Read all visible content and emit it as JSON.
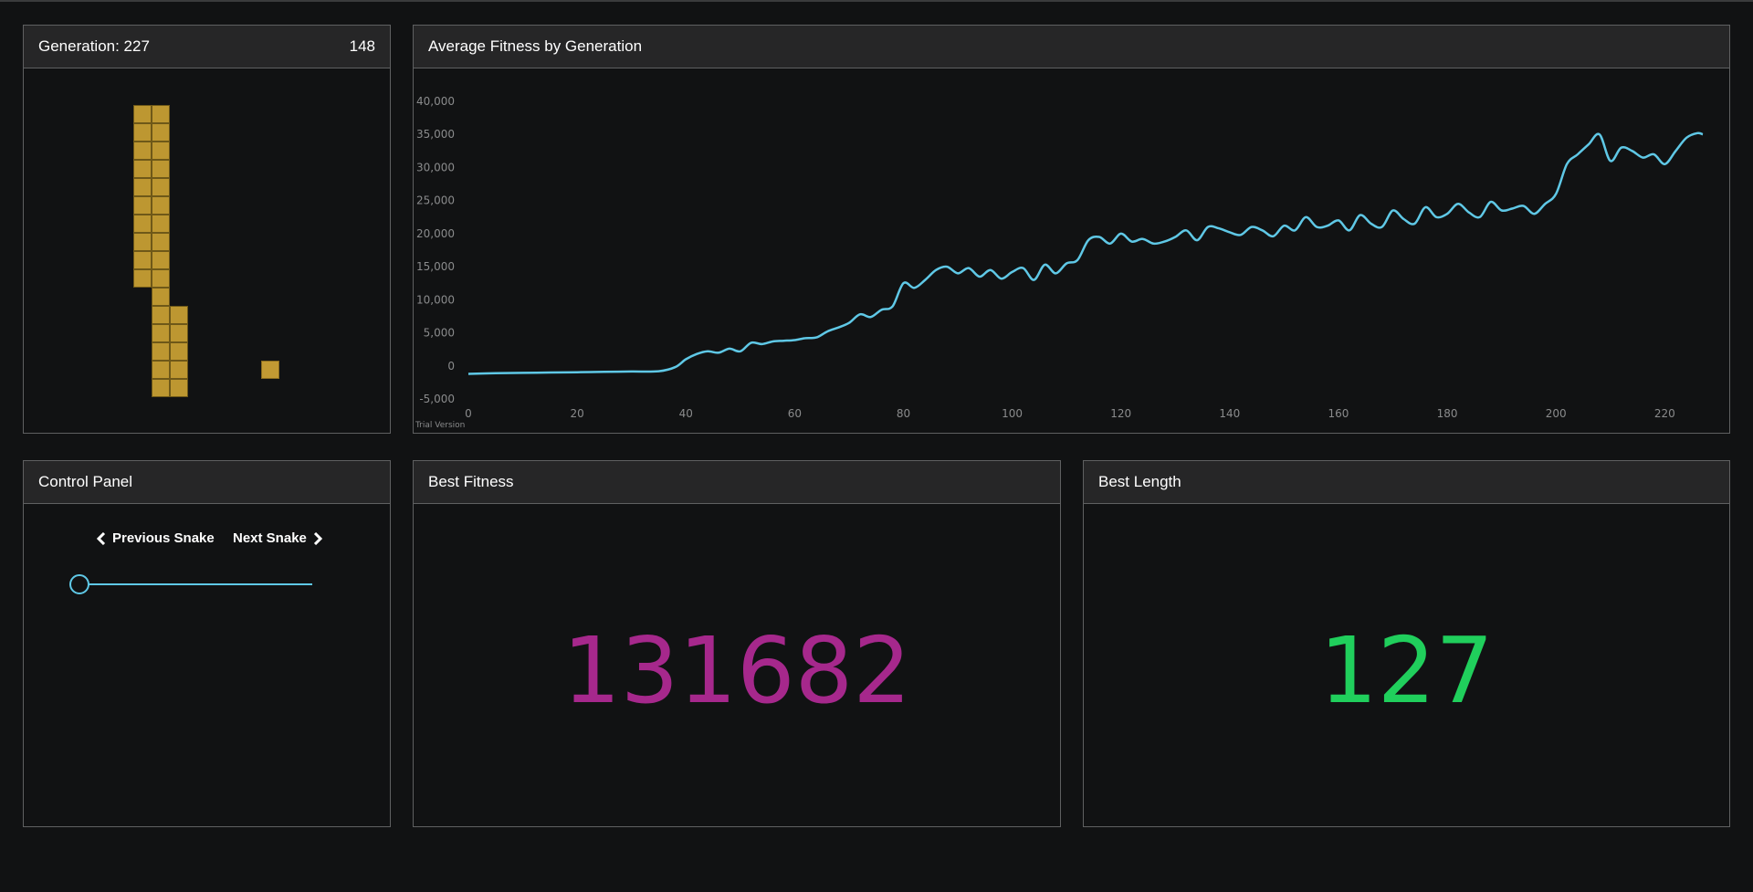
{
  "game": {
    "generation_label": "Generation: 227",
    "score": "148",
    "colors": {
      "snake": "#bd9731",
      "food": "#c39a33"
    }
  },
  "chart": {
    "title": "Average Fitness by Generation",
    "watermark": "Trial Version"
  },
  "chart_data": {
    "type": "line",
    "title": "Average Fitness by Generation",
    "xlabel": "",
    "ylabel": "",
    "xlim": [
      0,
      228
    ],
    "ylim": [
      -5000,
      40000
    ],
    "x_ticks": [
      "0",
      "20",
      "40",
      "60",
      "80",
      "100",
      "120",
      "140",
      "160",
      "180",
      "200",
      "220"
    ],
    "y_ticks": [
      "-5,000",
      "0",
      "5,000",
      "10,000",
      "15,000",
      "20,000",
      "25,000",
      "30,000",
      "35,000",
      "40,000"
    ],
    "grid": false,
    "legend": "none",
    "color": "#5fc8e6",
    "series": [
      {
        "x": [
          0,
          5,
          10,
          15,
          20,
          25,
          30,
          35,
          38,
          40,
          42,
          44,
          46,
          48,
          50,
          52,
          54,
          56,
          58,
          60,
          62,
          64,
          66,
          68,
          70,
          72,
          74,
          76,
          78,
          80,
          82,
          84,
          86,
          88,
          90,
          92,
          94,
          96,
          98,
          100,
          102,
          104,
          106,
          108,
          110,
          112,
          114,
          116,
          118,
          120,
          122,
          124,
          126,
          128,
          130,
          132,
          134,
          136,
          138,
          140,
          142,
          144,
          146,
          148,
          150,
          152,
          154,
          156,
          158,
          160,
          162,
          164,
          166,
          168,
          170,
          172,
          174,
          176,
          178,
          180,
          182,
          184,
          186,
          188,
          190,
          192,
          194,
          196,
          198,
          200,
          202,
          204,
          206,
          208,
          210,
          212,
          214,
          216,
          218,
          220,
          222,
          224,
          226,
          227
        ],
        "y": [
          -1200,
          -1100,
          -1050,
          -1000,
          -950,
          -900,
          -850,
          -800,
          -200,
          1000,
          1800,
          2200,
          2000,
          2600,
          2200,
          3500,
          3300,
          3700,
          3800,
          3900,
          4200,
          4300,
          5200,
          5800,
          6500,
          7800,
          7400,
          8500,
          9000,
          12500,
          11800,
          13000,
          14500,
          15000,
          14000,
          14800,
          13500,
          14500,
          13200,
          14200,
          14800,
          13000,
          15300,
          14000,
          15500,
          16000,
          19000,
          19500,
          18500,
          20000,
          18800,
          19200,
          18500,
          18800,
          19500,
          20500,
          19000,
          21000,
          20800,
          20200,
          19800,
          21000,
          20500,
          19600,
          21200,
          20500,
          22500,
          21000,
          21200,
          22000,
          20500,
          22800,
          21500,
          21000,
          23500,
          22200,
          21500,
          24000,
          22500,
          23000,
          24500,
          23200,
          22500,
          24800,
          23500,
          23800,
          24200,
          23000,
          24500,
          26000,
          30500,
          32000,
          33500,
          35000,
          31000,
          33000,
          32500,
          31500,
          32000,
          30500,
          32500,
          34500,
          35200,
          35000
        ]
      }
    ]
  },
  "control": {
    "title": "Control Panel",
    "prev_label": "Previous Snake",
    "next_label": "Next Snake",
    "slider_value": 0
  },
  "best_fitness": {
    "title": "Best Fitness",
    "value": "131682",
    "color": "#a6288c"
  },
  "best_length": {
    "title": "Best Length",
    "value": "127",
    "color": "#20cf5c"
  }
}
